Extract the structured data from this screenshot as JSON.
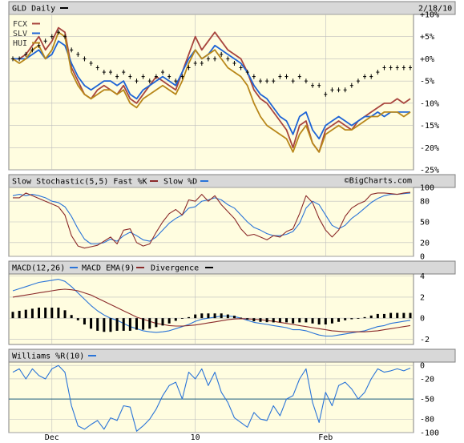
{
  "header": {
    "title": "GLD Daily",
    "date": "2/18/10",
    "watermark": "©BigCharts.com"
  },
  "colors": {
    "panel_bg": "#fffde0",
    "header_bg": "#d8d8d8",
    "grid": "#bdbdbd",
    "gld": "#000000",
    "fcx": "#a8453e",
    "slv": "#1e64d6",
    "hui": "#b8871a",
    "fast_k": "#8b2a2a",
    "slow_d": "#2a74d8",
    "macd": "#2a74d8",
    "macd_ema": "#8b2a2a",
    "divergence": "#000000",
    "williams": "#2a74d8",
    "williams_ref": "#1f5f7f"
  },
  "x_axis": {
    "labels": [
      {
        "text": "Dec",
        "index": 6
      },
      {
        "text": "10",
        "index": 28
      },
      {
        "text": "Feb",
        "index": 48
      }
    ]
  },
  "chart_data": [
    {
      "type": "line",
      "title": "GLD Daily",
      "ylabel": "",
      "ylim": [
        -25,
        10
      ],
      "y_ticks": [
        "+10%",
        "+5%",
        "+0%",
        "-5%",
        "-10%",
        "-15%",
        "-20%",
        "-25%"
      ],
      "y_tick_values": [
        10,
        5,
        0,
        -5,
        -10,
        -15,
        -20,
        -25
      ],
      "grid": true,
      "legend_position": "top-left",
      "series": [
        {
          "name": "FCX",
          "color_key": "fcx",
          "values": [
            0,
            0,
            1,
            3,
            5,
            2,
            4,
            7,
            6,
            -2,
            -5,
            -8,
            -9,
            -7,
            -6,
            -7,
            -8,
            -6,
            -9,
            -10,
            -8,
            -6,
            -4,
            -5,
            -6,
            -7,
            -3,
            1,
            5,
            2,
            4,
            6,
            4,
            2,
            1,
            0,
            -3,
            -7,
            -9,
            -10,
            -12,
            -14,
            -16,
            -20,
            -15,
            -14,
            -19,
            -21,
            -16,
            -15,
            -14,
            -15,
            -16,
            -14,
            -13,
            -12,
            -11,
            -10,
            -10,
            -9,
            -10,
            -9
          ]
        },
        {
          "name": "SLV",
          "color_key": "slv",
          "values": [
            0,
            0,
            0,
            1,
            2,
            0,
            1,
            4,
            3,
            -1,
            -4,
            -6,
            -7,
            -6,
            -5,
            -5,
            -6,
            -5,
            -8,
            -9,
            -7,
            -6,
            -5,
            -4,
            -5,
            -6,
            -3,
            0,
            2,
            0,
            1,
            3,
            2,
            1,
            0,
            -1,
            -3,
            -6,
            -8,
            -9,
            -11,
            -13,
            -14,
            -17,
            -13,
            -12,
            -16,
            -18,
            -15,
            -14,
            -13,
            -14,
            -15,
            -14,
            -13,
            -13,
            -12,
            -13,
            -12,
            -12,
            -12,
            -12
          ]
        },
        {
          "name": "HUI",
          "color_key": "hui",
          "values": [
            0,
            -1,
            0,
            2,
            3,
            0,
            2,
            6,
            5,
            -3,
            -6,
            -8,
            -9,
            -8,
            -7,
            -7,
            -8,
            -7,
            -10,
            -11,
            -9,
            -8,
            -7,
            -6,
            -7,
            -8,
            -5,
            -1,
            2,
            0,
            1,
            2,
            0,
            -2,
            -3,
            -4,
            -6,
            -10,
            -13,
            -15,
            -16,
            -17,
            -18,
            -21,
            -17,
            -15,
            -19,
            -21,
            -17,
            -16,
            -15,
            -16,
            -16,
            -15,
            -14,
            -13,
            -13,
            -12,
            -12,
            -12,
            -13,
            -12
          ]
        },
        {
          "name": "GLD",
          "color_key": "gld",
          "values": [
            0,
            0,
            1,
            2,
            3,
            4,
            5,
            6,
            5,
            2,
            1,
            0,
            -1,
            -2,
            -3,
            -3,
            -4,
            -3,
            -4,
            -5,
            -4,
            -5,
            -4,
            -3,
            -4,
            -5,
            -4,
            -2,
            -1,
            -1,
            0,
            0,
            1,
            0,
            -1,
            -2,
            -3,
            -4,
            -5,
            -5,
            -5,
            -4,
            -4,
            -5,
            -4,
            -5,
            -6,
            -6,
            -8,
            -7,
            -7,
            -7,
            -6,
            -5,
            -4,
            -4,
            -3,
            -2,
            -2,
            -2,
            -2,
            -2
          ]
        }
      ]
    },
    {
      "type": "line",
      "title": "Slow Stochastic(5,5) Fast %K",
      "ylabel": "",
      "ylim": [
        0,
        100
      ],
      "y_ticks": [
        "100",
        "80",
        "50",
        "20",
        "0"
      ],
      "y_tick_values": [
        100,
        80,
        50,
        20,
        0
      ],
      "grid": true,
      "legend_position": "top-left",
      "series": [
        {
          "name": "Slow %D",
          "color_key": "slow_d",
          "values": [
            88,
            90,
            88,
            90,
            88,
            85,
            80,
            78,
            72,
            58,
            40,
            25,
            18,
            18,
            20,
            25,
            22,
            30,
            35,
            30,
            24,
            22,
            28,
            38,
            48,
            55,
            60,
            70,
            72,
            80,
            82,
            85,
            82,
            75,
            70,
            60,
            50,
            42,
            38,
            33,
            30,
            30,
            32,
            36,
            48,
            70,
            80,
            75,
            60,
            45,
            40,
            45,
            55,
            62,
            70,
            78,
            84,
            88,
            90,
            90,
            91,
            92
          ]
        },
        {
          "name": "Fast %K",
          "color_key": "fast_k",
          "values": [
            85,
            85,
            92,
            88,
            84,
            80,
            76,
            72,
            60,
            30,
            15,
            12,
            14,
            16,
            22,
            28,
            18,
            38,
            40,
            20,
            15,
            18,
            35,
            50,
            62,
            68,
            60,
            82,
            80,
            90,
            80,
            88,
            75,
            65,
            55,
            40,
            30,
            32,
            28,
            24,
            30,
            28,
            36,
            40,
            62,
            88,
            78,
            55,
            38,
            28,
            38,
            58,
            70,
            76,
            80,
            90,
            92,
            92,
            91,
            90,
            92,
            93
          ]
        }
      ]
    },
    {
      "type": "line",
      "title": "MACD(12,26)",
      "ylabel": "",
      "ylim": [
        -2.5,
        4.2
      ],
      "y_ticks": [
        "4",
        "2",
        "0",
        "-2"
      ],
      "y_tick_values": [
        4,
        2,
        0,
        -2
      ],
      "grid": true,
      "legend_position": "top-left",
      "series": [
        {
          "name": "MACD",
          "color_key": "macd",
          "values": [
            2.6,
            2.8,
            3.0,
            3.2,
            3.4,
            3.5,
            3.6,
            3.7,
            3.5,
            3.0,
            2.4,
            1.8,
            1.2,
            0.7,
            0.3,
            0.0,
            -0.2,
            -0.5,
            -0.8,
            -1.0,
            -1.2,
            -1.3,
            -1.35,
            -1.3,
            -1.2,
            -1.0,
            -0.8,
            -0.6,
            -0.3,
            -0.1,
            0.0,
            0.1,
            0.2,
            0.2,
            0.15,
            0.0,
            -0.2,
            -0.4,
            -0.5,
            -0.6,
            -0.7,
            -0.8,
            -0.9,
            -1.1,
            -1.1,
            -1.2,
            -1.4,
            -1.6,
            -1.7,
            -1.7,
            -1.6,
            -1.5,
            -1.4,
            -1.3,
            -1.2,
            -1.0,
            -0.8,
            -0.7,
            -0.5,
            -0.4,
            -0.3,
            -0.2
          ]
        },
        {
          "name": "MACD EMA(9)",
          "color_key": "macd_ema",
          "values": [
            2.0,
            2.1,
            2.2,
            2.3,
            2.4,
            2.5,
            2.6,
            2.7,
            2.75,
            2.7,
            2.6,
            2.4,
            2.2,
            1.9,
            1.6,
            1.3,
            1.0,
            0.7,
            0.4,
            0.1,
            -0.1,
            -0.3,
            -0.5,
            -0.6,
            -0.7,
            -0.75,
            -0.75,
            -0.7,
            -0.65,
            -0.55,
            -0.45,
            -0.35,
            -0.25,
            -0.15,
            -0.08,
            -0.05,
            -0.07,
            -0.1,
            -0.15,
            -0.22,
            -0.3,
            -0.4,
            -0.5,
            -0.6,
            -0.7,
            -0.8,
            -0.9,
            -1.0,
            -1.1,
            -1.2,
            -1.25,
            -1.3,
            -1.3,
            -1.3,
            -1.3,
            -1.25,
            -1.2,
            -1.1,
            -1.0,
            -0.9,
            -0.8,
            -0.7
          ]
        },
        {
          "name": "Divergence",
          "color_key": "divergence",
          "kind": "bar",
          "values": [
            0.6,
            0.7,
            0.8,
            0.9,
            1.0,
            1.0,
            1.0,
            1.0,
            0.75,
            0.3,
            -0.2,
            -0.6,
            -1.0,
            -1.2,
            -1.3,
            -1.3,
            -1.2,
            -1.2,
            -1.2,
            -1.1,
            -1.1,
            -1.0,
            -0.85,
            -0.7,
            -0.5,
            -0.25,
            -0.05,
            0.1,
            0.35,
            0.45,
            0.45,
            0.45,
            0.45,
            0.35,
            0.23,
            0.05,
            -0.13,
            -0.3,
            -0.35,
            -0.38,
            -0.4,
            -0.4,
            -0.4,
            -0.5,
            -0.4,
            -0.4,
            -0.5,
            -0.6,
            -0.6,
            -0.5,
            -0.35,
            -0.2,
            -0.1,
            0.0,
            0.1,
            0.25,
            0.4,
            0.4,
            0.5,
            0.5,
            0.5,
            0.5
          ]
        }
      ]
    },
    {
      "type": "line",
      "title": "Williams %R(10)",
      "ylabel": "",
      "ylim": [
        -100,
        5
      ],
      "y_ticks": [
        "0",
        "-20",
        "-50",
        "-80",
        "-100"
      ],
      "y_tick_values": [
        0,
        -20,
        -50,
        -80,
        -100
      ],
      "reference_line": -50,
      "grid": true,
      "legend_position": "top-left",
      "series": [
        {
          "name": "Williams %R",
          "color_key": "williams",
          "values": [
            -10,
            -5,
            -20,
            -5,
            -15,
            -20,
            -5,
            0,
            -10,
            -60,
            -90,
            -95,
            -88,
            -82,
            -95,
            -78,
            -82,
            -60,
            -62,
            -98,
            -90,
            -80,
            -65,
            -45,
            -30,
            -25,
            -50,
            -10,
            -20,
            -5,
            -30,
            -10,
            -40,
            -55,
            -78,
            -85,
            -92,
            -70,
            -80,
            -82,
            -60,
            -75,
            -50,
            -45,
            -20,
            -5,
            -55,
            -85,
            -40,
            -60,
            -30,
            -25,
            -35,
            -50,
            -40,
            -20,
            -5,
            -10,
            -8,
            -5,
            -8,
            -4
          ]
        }
      ]
    }
  ]
}
